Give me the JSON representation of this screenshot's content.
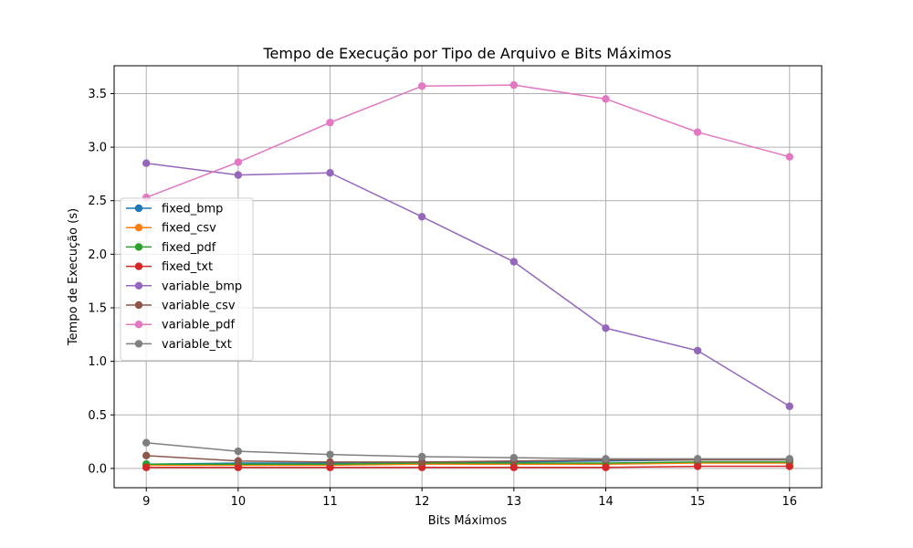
{
  "chart_data": {
    "type": "line",
    "title": "Tempo de Execução por Tipo de Arquivo e Bits Máximos",
    "xlabel": "Bits Máximos",
    "ylabel": "Tempo de Execução (s)",
    "x": [
      9,
      10,
      11,
      12,
      13,
      14,
      15,
      16
    ],
    "xlim": [
      8.65,
      16.35
    ],
    "ylim": [
      -0.18,
      3.76
    ],
    "yticks": [
      0.0,
      0.5,
      1.0,
      1.5,
      2.0,
      2.5,
      3.0,
      3.5
    ],
    "ytick_labels": [
      "0.0",
      "0.5",
      "1.0",
      "1.5",
      "2.0",
      "2.5",
      "3.0",
      "3.5"
    ],
    "xtick_labels": [
      "9",
      "10",
      "11",
      "12",
      "13",
      "14",
      "15",
      "16"
    ],
    "grid": true,
    "legend_position": "center-left",
    "series": [
      {
        "name": "fixed_bmp",
        "color": "#1f77b4",
        "values": [
          0.04,
          0.05,
          0.05,
          0.06,
          0.06,
          0.07,
          0.08,
          0.08
        ]
      },
      {
        "name": "fixed_csv",
        "color": "#ff7f0e",
        "values": [
          0.03,
          0.03,
          0.03,
          0.04,
          0.04,
          0.04,
          0.05,
          0.05
        ]
      },
      {
        "name": "fixed_pdf",
        "color": "#2ca02c",
        "values": [
          0.04,
          0.04,
          0.04,
          0.05,
          0.05,
          0.05,
          0.06,
          0.06
        ]
      },
      {
        "name": "fixed_txt",
        "color": "#d62728",
        "values": [
          0.01,
          0.01,
          0.01,
          0.01,
          0.01,
          0.01,
          0.02,
          0.02
        ]
      },
      {
        "name": "variable_bmp",
        "color": "#9467bd",
        "values": [
          2.85,
          2.74,
          2.76,
          2.35,
          1.93,
          1.31,
          1.1,
          0.58
        ]
      },
      {
        "name": "variable_csv",
        "color": "#8c564b",
        "values": [
          0.12,
          0.07,
          0.06,
          0.06,
          0.07,
          0.08,
          0.08,
          0.08
        ]
      },
      {
        "name": "variable_pdf",
        "color": "#e377c2",
        "values": [
          2.53,
          2.86,
          3.23,
          3.57,
          3.58,
          3.45,
          3.14,
          2.91
        ]
      },
      {
        "name": "variable_txt",
        "color": "#7f7f7f",
        "values": [
          0.24,
          0.16,
          0.13,
          0.11,
          0.1,
          0.09,
          0.09,
          0.09
        ]
      }
    ]
  }
}
